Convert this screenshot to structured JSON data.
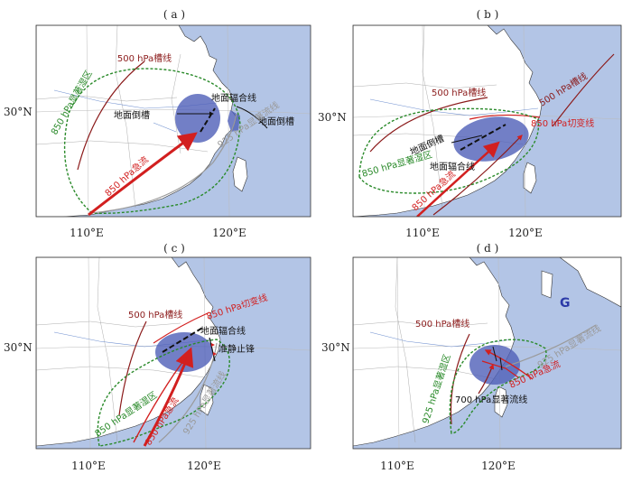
{
  "figure": {
    "panels": [
      {
        "label": "( a )",
        "lat_label": "30°N",
        "lon_labels": [
          "110°E",
          "120°E"
        ],
        "annotations": {
          "trough500": "500 hPa槽线",
          "moist850": "850 hPa显著湿区",
          "sfc_trough_a": "地面倒槽",
          "sfc_convergence": "地面辐合线",
          "sfc_trough_b": "地面倒槽",
          "jet850": "850 hPa急流",
          "stream925": "925 hPa显著流线"
        }
      },
      {
        "label": "( b )",
        "lat_label": "30°N",
        "lon_labels": [
          "110°E",
          "120°E"
        ],
        "annotations": {
          "trough500_w": "500 hPa槽线",
          "trough500_e": "500 hPa槽线",
          "shear850": "850 hPa切变线",
          "sfc_trough": "地面倒槽",
          "moist850": "850 hPa显著湿区",
          "sfc_convergence": "地面辐合线",
          "jet850": "850 hPa急流"
        }
      },
      {
        "label": "( c )",
        "lat_label": "30°N",
        "lon_labels": [
          "110°E",
          "120°E"
        ],
        "annotations": {
          "shear850": "850 hPa切变线",
          "trough500": "500 hPa槽线",
          "sfc_convergence": "地面辐合线",
          "stationary_front": "准静止锋",
          "moist850": "850 hPa显著湿区",
          "jet850": "850 hPa急流",
          "stream925": "925 hPa显著流线"
        }
      },
      {
        "label": "( d )",
        "lat_label": "30°N",
        "lon_labels": [
          "110°E",
          "120°E"
        ],
        "annotations": {
          "trough500": "500 hPa槽线",
          "stream925_e": "925 hPa显著流线",
          "moist925": "925 hPa显著湿区",
          "jet850": "850 hPa急流",
          "stream700": "700 hPa显著流线",
          "marker": "G"
        }
      }
    ],
    "colors": {
      "ocean": "#b3c5e6",
      "land": "#ffffff",
      "rain": "#4f5fb8",
      "red": "#d21f1f",
      "darkred": "#8b1a1a",
      "green": "#2a8a2a",
      "gray": "#9a9a9a",
      "black": "#111111"
    }
  }
}
